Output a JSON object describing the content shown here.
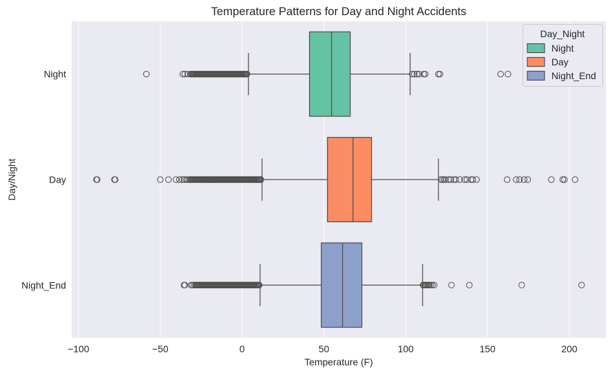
{
  "chart_data": {
    "type": "box",
    "orientation": "horizontal",
    "title": "Temperature Patterns for Day and Night Accidents",
    "xlabel": "Temperature (F)",
    "ylabel": "Day/Night",
    "xlim": [
      -104.2,
      222.3
    ],
    "xticks": [
      -100,
      -50,
      0,
      50,
      100,
      150,
      200
    ],
    "xtick_labels": [
      "−100",
      "−50",
      "0",
      "50",
      "100",
      "150",
      "200"
    ],
    "categories": [
      "Night",
      "Day",
      "Night_End"
    ],
    "grid": {
      "x": true,
      "y": false
    },
    "line_color": "#4f4f4f",
    "legend": {
      "title": "Day_Night",
      "position": "top-right"
    },
    "series": [
      {
        "name": "Night",
        "color": "#66C2A5",
        "whisker_low": 3.9,
        "q1": 41.2,
        "median": 54.7,
        "q3": 66.1,
        "whisker_high": 102.7,
        "outliers": [
          -58.5,
          -36.2,
          -35.0,
          -33.2,
          -31.5,
          -31.0,
          -30.5,
          -30.0,
          -29.5,
          -29.0,
          -28.5,
          -28.0,
          -27.5,
          -27.0,
          -26.5,
          -26.0,
          -25.5,
          -25.0,
          -24.5,
          -24.0,
          -23.5,
          -23.0,
          -22.5,
          -22.0,
          -21.5,
          -21.0,
          -20.5,
          -20.0,
          -19.5,
          -19.0,
          -18.5,
          -18.0,
          -17.5,
          -17.0,
          -16.5,
          -16.0,
          -15.5,
          -15.0,
          -14.5,
          -14.0,
          -13.5,
          -13.0,
          -12.5,
          -12.0,
          -11.5,
          -11.0,
          -10.5,
          -10.0,
          -9.5,
          -9.0,
          -8.5,
          -8.0,
          -7.5,
          -7.0,
          -6.5,
          -6.0,
          -5.5,
          -5.0,
          -4.5,
          -4.0,
          -3.5,
          -3.0,
          -2.5,
          -2.0,
          -1.5,
          -1.0,
          -0.5,
          0.0,
          0.5,
          1.0,
          1.5,
          2.0,
          2.5,
          3.0,
          104.0,
          105.2,
          106.9,
          108.2,
          111.0,
          111.9,
          120.0,
          120.9,
          158.0,
          162.5
        ]
      },
      {
        "name": "Day",
        "color": "#FC8D62",
        "whisker_low": 12.2,
        "q1": 52.2,
        "median": 67.8,
        "q3": 79.1,
        "whisker_high": 120.0,
        "outliers": [
          -89.0,
          -88.6,
          -78.0,
          -77.6,
          -50.0,
          -45.0,
          -40.4,
          -38.3,
          -36.6,
          -35.4,
          -34.1,
          -33.2,
          -32.0,
          -31.5,
          -31.0,
          -30.5,
          -30.0,
          -29.5,
          -29.0,
          -28.5,
          -28.0,
          -27.5,
          -27.0,
          -26.5,
          -26.0,
          -25.5,
          -25.0,
          -24.5,
          -24.0,
          -23.5,
          -23.0,
          -22.5,
          -22.0,
          -21.5,
          -21.0,
          -20.5,
          -20.0,
          -19.5,
          -19.0,
          -18.5,
          -18.0,
          -17.5,
          -17.0,
          -16.5,
          -16.0,
          -15.5,
          -15.0,
          -14.5,
          -14.0,
          -13.5,
          -13.0,
          -12.5,
          -12.0,
          -11.5,
          -11.0,
          -10.5,
          -10.0,
          -9.5,
          -9.0,
          -8.5,
          -8.0,
          -7.5,
          -7.0,
          -6.5,
          -6.0,
          -5.5,
          -5.0,
          -4.5,
          -4.0,
          -3.5,
          -3.0,
          -2.5,
          -2.0,
          -1.5,
          -1.0,
          -0.5,
          0.0,
          0.5,
          1.0,
          1.5,
          2.0,
          2.5,
          3.0,
          3.5,
          4.0,
          4.5,
          5.0,
          5.5,
          6.0,
          6.5,
          7.0,
          7.5,
          8.0,
          8.5,
          9.0,
          9.5,
          10.0,
          10.5,
          11.0,
          11.5,
          121.5,
          122.5,
          123.5,
          124.3,
          126.2,
          127.6,
          129.5,
          130.6,
          133.0,
          136.0,
          137.4,
          140.0,
          141.0,
          143.3,
          162.0,
          167.5,
          169.6,
          172.4,
          174.6,
          189.0,
          196.0,
          197.0,
          203.5
        ]
      },
      {
        "name": "Night_End",
        "color": "#8DA0CB",
        "whisker_low": 11.0,
        "q1": 48.4,
        "median": 61.4,
        "q3": 73.2,
        "whisker_high": 110.3,
        "outliers": [
          -35.5,
          -35.0,
          -31.2,
          -30.4,
          -29.4,
          -28.5,
          -28.0,
          -27.5,
          -27.0,
          -26.5,
          -26.0,
          -25.5,
          -25.0,
          -24.5,
          -24.0,
          -23.5,
          -23.0,
          -22.5,
          -22.0,
          -21.5,
          -21.0,
          -20.5,
          -20.0,
          -19.5,
          -19.0,
          -18.5,
          -18.0,
          -17.5,
          -17.0,
          -16.5,
          -16.0,
          -15.5,
          -15.0,
          -14.5,
          -14.0,
          -13.5,
          -13.0,
          -12.5,
          -12.0,
          -11.5,
          -11.0,
          -10.5,
          -10.0,
          -9.5,
          -9.0,
          -8.5,
          -8.0,
          -7.5,
          -7.0,
          -6.5,
          -6.0,
          -5.5,
          -5.0,
          -4.5,
          -4.0,
          -3.5,
          -3.0,
          -2.5,
          -2.0,
          -1.5,
          -1.0,
          -0.5,
          0.0,
          0.5,
          1.0,
          1.5,
          2.0,
          2.5,
          3.0,
          3.5,
          4.0,
          4.5,
          5.0,
          5.5,
          6.0,
          6.5,
          7.0,
          7.5,
          8.0,
          8.5,
          9.0,
          9.5,
          10.0,
          10.5,
          110.6,
          111.2,
          111.8,
          112.4,
          113.0,
          113.7,
          114.4,
          115.3,
          116.3,
          117.4,
          128.0,
          138.9,
          170.9,
          207.5
        ]
      }
    ]
  }
}
